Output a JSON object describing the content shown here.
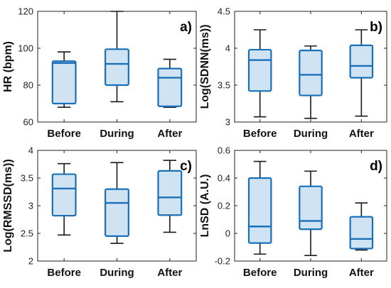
{
  "chart_data": [
    {
      "type": "box",
      "label": "a)",
      "ylabel": "HR (bpm)",
      "ylim": [
        60,
        120
      ],
      "yticks": [
        "60",
        "80",
        "100",
        "120"
      ],
      "categories": [
        "Before",
        "During",
        "After"
      ],
      "boxes": [
        {
          "min": 68,
          "q1": 70,
          "median": 92,
          "q3": 93,
          "max": 98
        },
        {
          "min": 71,
          "q1": 80,
          "median": 91.5,
          "q3": 99.5,
          "max": 120
        },
        {
          "min": 68,
          "q1": 68.5,
          "median": 84,
          "q3": 89,
          "max": 94
        }
      ],
      "label_position": "top-right"
    },
    {
      "type": "box",
      "label": "b)",
      "ylabel": "Log(SDNN(ms))",
      "ylim": [
        3,
        4.5
      ],
      "yticks": [
        "3",
        "3.5",
        "4",
        "4.5"
      ],
      "categories": [
        "Before",
        "During",
        "After"
      ],
      "boxes": [
        {
          "min": 3.07,
          "q1": 3.42,
          "median": 3.84,
          "q3": 3.98,
          "max": 4.25
        },
        {
          "min": 3.05,
          "q1": 3.36,
          "median": 3.64,
          "q3": 3.97,
          "max": 4.03
        },
        {
          "min": 3.08,
          "q1": 3.6,
          "median": 3.76,
          "q3": 4.04,
          "max": 4.25
        }
      ],
      "label_position": "top-right"
    },
    {
      "type": "box",
      "label": "c)",
      "ylabel": "Log(RMSSD(ms))",
      "ylim": [
        2,
        4
      ],
      "yticks": [
        "2",
        "2.5",
        "3",
        "3.5",
        "4"
      ],
      "categories": [
        "Before",
        "During",
        "After"
      ],
      "boxes": [
        {
          "min": 2.47,
          "q1": 2.82,
          "median": 3.31,
          "q3": 3.57,
          "max": 3.76
        },
        {
          "min": 2.32,
          "q1": 2.45,
          "median": 3.05,
          "q3": 3.3,
          "max": 3.78
        },
        {
          "min": 2.52,
          "q1": 2.83,
          "median": 3.15,
          "q3": 3.63,
          "max": 3.82
        }
      ],
      "label_position": "top-right"
    },
    {
      "type": "box",
      "label": "d)",
      "ylabel": "LnSD (A.U.)",
      "ylim": [
        -0.2,
        0.6
      ],
      "yticks": [
        "-0.2",
        "0",
        "0.2",
        "0.4",
        "0.6"
      ],
      "categories": [
        "Before",
        "During",
        "After"
      ],
      "boxes": [
        {
          "min": -0.15,
          "q1": -0.07,
          "median": 0.05,
          "q3": 0.4,
          "max": 0.52
        },
        {
          "min": -0.16,
          "q1": 0.03,
          "median": 0.09,
          "q3": 0.34,
          "max": 0.45
        },
        {
          "min": -0.12,
          "q1": -0.11,
          "median": -0.04,
          "q3": 0.12,
          "max": 0.22
        }
      ],
      "label_position": "top-right"
    }
  ],
  "colors": {
    "box_fill": "#cfe3f3",
    "box_stroke": "#1a70b8",
    "whisker": "#1a1a1a",
    "axis": "#222222"
  }
}
